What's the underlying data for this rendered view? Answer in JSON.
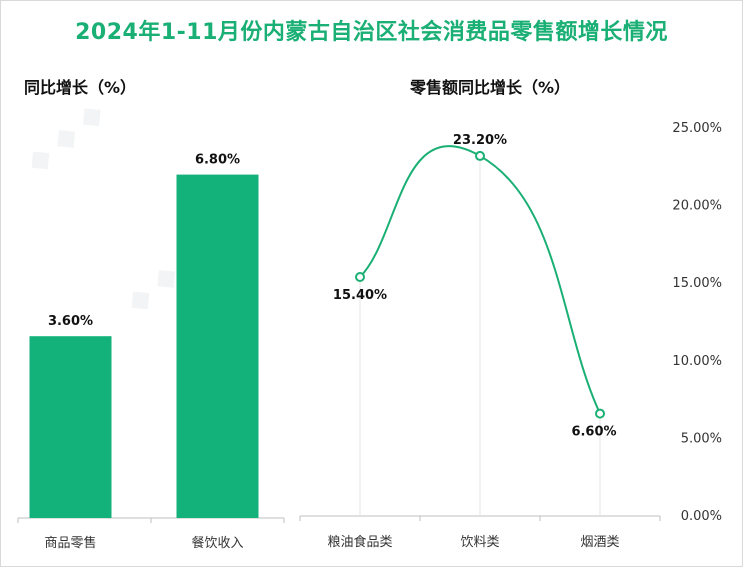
{
  "title": "2024年1-11月份内蒙古自治区社会消费品零售额增长情况",
  "colors": {
    "title": "#1aaf74",
    "bar": "#13b27b",
    "line": "#1aaf74",
    "axis": "#bfbfbf",
    "grid": "#e6e6e6"
  },
  "chart_data": [
    {
      "type": "bar",
      "title": "同比增长（%）",
      "categories": [
        "商品零售",
        "餐饮收入"
      ],
      "values": [
        3.6,
        6.8
      ],
      "value_labels": [
        "3.60%",
        "6.80%"
      ],
      "ylim": [
        0,
        8
      ],
      "xlabel": "",
      "ylabel": "",
      "grid": false
    },
    {
      "type": "line",
      "title": "零售额同比增长（%）",
      "categories": [
        "粮油食品类",
        "饮料类",
        "烟酒类"
      ],
      "values": [
        15.4,
        23.2,
        6.6
      ],
      "value_labels": [
        "15.40%",
        "23.20%",
        "6.60%"
      ],
      "ylim": [
        0,
        25
      ],
      "yticks": [
        "0.00%",
        "5.00%",
        "10.00%",
        "15.00%",
        "20.00%",
        "25.00%"
      ],
      "ytick_values": [
        0,
        5,
        10,
        15,
        20,
        25
      ],
      "yaxis_position": "right",
      "smooth": true,
      "grid": false
    }
  ]
}
